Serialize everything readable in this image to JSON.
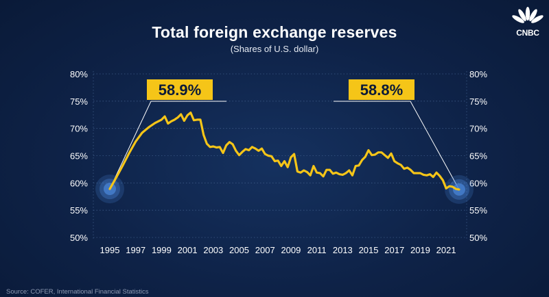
{
  "chart_data": {
    "type": "line",
    "title": "Total foreign exchange reserves",
    "subtitle": "(Shares of U.S. dollar)",
    "xlabel": "",
    "ylabel": "",
    "ylim": [
      50,
      80
    ],
    "xlim": [
      1995,
      2022
    ],
    "y_ticks": [
      "80%",
      "75%",
      "70%",
      "65%",
      "60%",
      "55%",
      "50%"
    ],
    "x_ticks": [
      "1995",
      "1997",
      "1999",
      "2001",
      "2003",
      "2005",
      "2007",
      "2009",
      "2011",
      "2013",
      "2015",
      "2017",
      "2019",
      "2021"
    ],
    "series": [
      {
        "name": "U.S. dollar share",
        "color": "#f5c518",
        "x": [
          1995,
          1995.5,
          1996,
          1996.5,
          1997,
          1997.5,
          1998,
          1998.5,
          1999,
          1999.25,
          1999.5,
          1999.75,
          2000,
          2000.25,
          2000.5,
          2000.75,
          2001,
          2001.25,
          2001.5,
          2001.75,
          2002,
          2002.25,
          2002.5,
          2002.75,
          2003,
          2003.25,
          2003.5,
          2003.75,
          2004,
          2004.25,
          2004.5,
          2004.75,
          2005,
          2005.25,
          2005.5,
          2005.75,
          2006,
          2006.25,
          2006.5,
          2006.75,
          2007,
          2007.25,
          2007.5,
          2007.75,
          2008,
          2008.25,
          2008.5,
          2008.75,
          2009,
          2009.25,
          2009.5,
          2009.75,
          2010,
          2010.25,
          2010.5,
          2010.75,
          2011,
          2011.25,
          2011.5,
          2011.75,
          2012,
          2012.25,
          2012.5,
          2012.75,
          2013,
          2013.25,
          2013.5,
          2013.75,
          2014,
          2014.25,
          2014.5,
          2014.75,
          2015,
          2015.25,
          2015.5,
          2015.75,
          2016,
          2016.25,
          2016.5,
          2016.75,
          2017,
          2017.25,
          2017.5,
          2017.75,
          2018,
          2018.25,
          2018.5,
          2018.75,
          2019,
          2019.25,
          2019.5,
          2019.75,
          2020,
          2020.25,
          2020.5,
          2020.75,
          2021,
          2021.25,
          2021.5,
          2021.75,
          2022
        ],
        "values": [
          58.9,
          61.0,
          63.2,
          65.5,
          67.6,
          69.2,
          70.2,
          71.0,
          71.6,
          72.2,
          70.9,
          71.3,
          71.6,
          72.0,
          72.6,
          71.4,
          72.4,
          72.9,
          71.5,
          71.6,
          71.6,
          68.8,
          67.2,
          66.6,
          66.7,
          66.5,
          66.6,
          65.5,
          66.9,
          67.5,
          67.1,
          65.9,
          65.1,
          65.7,
          66.2,
          66.0,
          66.6,
          66.3,
          65.9,
          66.3,
          65.3,
          65.0,
          64.9,
          64.0,
          64.1,
          63.1,
          64.0,
          62.9,
          64.7,
          65.3,
          62.1,
          61.9,
          62.3,
          62.0,
          61.4,
          63.1,
          61.9,
          61.8,
          61.2,
          62.4,
          62.4,
          61.7,
          61.9,
          61.6,
          61.5,
          61.8,
          62.3,
          61.4,
          63.1,
          63.2,
          64.2,
          64.8,
          66.0,
          65.1,
          65.2,
          65.6,
          65.6,
          65.1,
          64.6,
          65.4,
          64.0,
          63.6,
          63.3,
          62.6,
          62.8,
          62.4,
          61.8,
          61.8,
          61.8,
          61.5,
          61.4,
          61.6,
          61.1,
          61.9,
          61.3,
          60.5,
          59.0,
          59.4,
          59.3,
          58.9,
          58.8
        ]
      }
    ],
    "annotations": [
      {
        "label": "58.9%",
        "x": 1995,
        "value": 58.9
      },
      {
        "label": "58.8%",
        "x": 2022,
        "value": 58.8
      }
    ]
  },
  "source": "Source: COFER, International Financial Statistics",
  "logo_text": "CNBC",
  "colors": {
    "line": "#f5c518",
    "callout_bg": "#f5c518",
    "callout_text": "#0b1a38",
    "grid": "#3d5a86",
    "marker": "#4a84d6"
  }
}
